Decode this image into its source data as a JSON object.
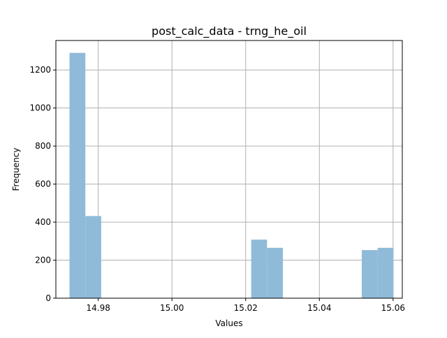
{
  "chart_data": {
    "type": "bar",
    "title": "post_calc_data - trng_he_oil",
    "xlabel": "Values",
    "ylabel": "Frequency",
    "xlim": [
      14.9685,
      15.0625
    ],
    "ylim": [
      0,
      1355
    ],
    "grid": true,
    "bar_color": "#8fbbd9",
    "grid_color": "#b0b0b0",
    "x_ticks": [
      14.98,
      15.0,
      15.02,
      15.04,
      15.06
    ],
    "x_tick_labels": [
      "14.98",
      "15.00",
      "15.02",
      "15.04",
      "15.06"
    ],
    "y_ticks": [
      0,
      200,
      400,
      600,
      800,
      1000,
      1200
    ],
    "y_tick_labels": [
      "0",
      "200",
      "400",
      "600",
      "800",
      "1000",
      "1200"
    ],
    "bins": [
      {
        "x0": 14.9722,
        "x1": 14.9765,
        "count": 1290
      },
      {
        "x0": 14.9765,
        "x1": 14.9808,
        "count": 432
      },
      {
        "x0": 15.0215,
        "x1": 15.0258,
        "count": 308
      },
      {
        "x0": 15.0258,
        "x1": 15.0301,
        "count": 265
      },
      {
        "x0": 15.0515,
        "x1": 15.0558,
        "count": 253
      },
      {
        "x0": 15.0558,
        "x1": 15.0601,
        "count": 265
      }
    ]
  }
}
